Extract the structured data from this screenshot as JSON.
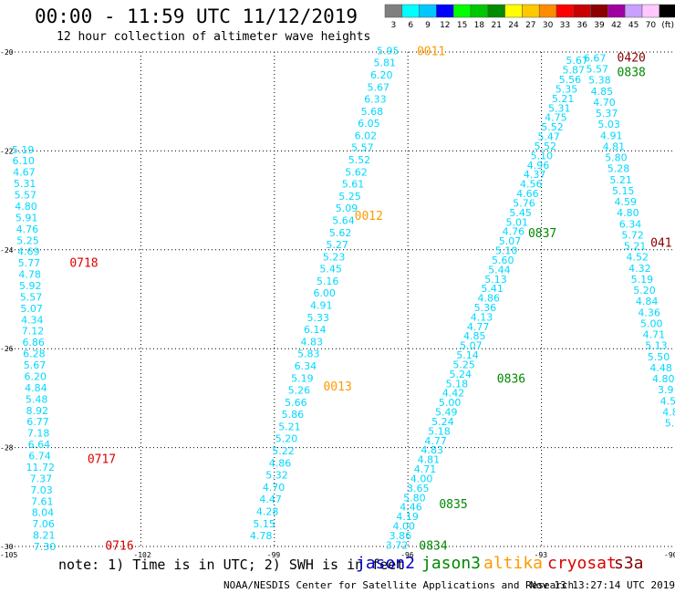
{
  "title": "00:00 - 11:59 UTC 11/12/2019",
  "subtitle": "12 hour collection of altimeter wave heights",
  "note": "note: 1) Time is in UTC; 2) SWH is in feet",
  "footer_left": "NOAA/NESDIS Center for Satellite Applications and Research",
  "footer_right": "Nov 13 13:27:14 UTC 2019",
  "colorbar": {
    "labels": [
      "3",
      "6",
      "9",
      "12",
      "15",
      "18",
      "21",
      "24",
      "27",
      "30",
      "33",
      "36",
      "39",
      "42",
      "45",
      "70",
      "(ft)"
    ],
    "colors": [
      "#7f7f7f",
      "#00ffff",
      "#00c8ff",
      "#0000ff",
      "#00ff00",
      "#00c800",
      "#008c00",
      "#ffff00",
      "#ffc800",
      "#ff8c00",
      "#ff0000",
      "#c80000",
      "#8c0000",
      "#a000a0",
      "#c8a0ff",
      "#ffc8ff",
      "#000000"
    ]
  },
  "satellites": [
    {
      "name": "jason2",
      "color": "#0000cc"
    },
    {
      "name": "jason3",
      "color": "#008800"
    },
    {
      "name": "altika",
      "color": "#ff9900"
    },
    {
      "name": "cryosat",
      "color": "#dd0000"
    },
    {
      "name": "s3a",
      "color": "#880000"
    }
  ],
  "chart_data": {
    "type": "scatter",
    "title": "00:00 - 11:59 UTC 11/12/2019",
    "subtitle": "12 hour collection of altimeter wave heights",
    "xlim": [
      -105,
      -90
    ],
    "ylim": [
      -30,
      -20
    ],
    "x_ticks": [
      "-105",
      "-102",
      "-99",
      "-96",
      "-93",
      "-90"
    ],
    "y_ticks": [
      "-20",
      "-22",
      "-24",
      "-26",
      "-28",
      "-30"
    ],
    "grid": true,
    "tracks": [
      {
        "satellite": "cryosat",
        "color": "#00d8ff",
        "x0": -104.65,
        "y0": -21.97,
        "x1": -104.16,
        "y1": -30,
        "values": [
          "5.19",
          "6.10",
          "4.67",
          "5.31",
          "5.57",
          "4.80",
          "5.91",
          "4.76",
          "5.25",
          "4.69",
          "5.77",
          "4.78",
          "5.92",
          "5.57",
          "5.07",
          "4.34",
          "7.12",
          "6.86",
          "6.28",
          "5.67",
          "6.20",
          "4.84",
          "5.48",
          "8.92",
          "6.77",
          "7.18",
          "6.64",
          "6.74",
          "11.72",
          "7.37",
          "7.03",
          "7.61",
          "8.04",
          "7.06",
          "8.21",
          "7.30"
        ]
      },
      {
        "satellite": "cryosat",
        "times": [
          {
            "label": "0718",
            "x": -103.6,
            "y": -24.25
          },
          {
            "label": "0717",
            "x": -103.2,
            "y": -28.22
          },
          {
            "label": "0716",
            "x": -102.8,
            "y": -29.97
          }
        ],
        "color": "#dd0000"
      },
      {
        "satellite": "altika",
        "color": "#00d8ff",
        "x0": -96.45,
        "y0": -19.97,
        "x1": -99.3,
        "y1": -29.78,
        "values": [
          "5.95",
          "5.81",
          "6.20",
          "5.67",
          "6.33",
          "5.68",
          "6.05",
          "6.02",
          "5.57",
          "5.52",
          "5.62",
          "5.61",
          "5.25",
          "5.09",
          "5.64",
          "5.62",
          "5.27",
          "5.23",
          "5.45",
          "5.16",
          "6.00",
          "4.91",
          "5.33",
          "6.14",
          "4.83",
          "5.83",
          "6.34",
          "5.19",
          "5.26",
          "5.66",
          "5.86",
          "5.21",
          "5.20",
          "5.22",
          "4.86",
          "5.32",
          "4.70",
          "4.47",
          "4.28",
          "5.15",
          "4.78"
        ]
      },
      {
        "satellite": "altika",
        "times": [
          {
            "label": "0011",
            "x": -95.8,
            "y": -19.97
          },
          {
            "label": "0012",
            "x": -97.2,
            "y": -23.3
          },
          {
            "label": "0013",
            "x": -97.9,
            "y": -26.75
          }
        ],
        "color": "#ff9900"
      },
      {
        "satellite": "jason3",
        "color": "#00d8ff",
        "x0": -92.2,
        "y0": -20.17,
        "x1": -96.25,
        "y1": -29.97,
        "values": [
          "5.67",
          "5.87",
          "5.56",
          "5.35",
          "5.21",
          "5.31",
          "4.75",
          "5.52",
          "5.47",
          "5.52",
          "5.10",
          "4.96",
          "4.37",
          "4.56",
          "4.66",
          "5.76",
          "5.45",
          "5.01",
          "4.76",
          "5.07",
          "5.10",
          "5.60",
          "5.44",
          "5.13",
          "5.41",
          "4.86",
          "5.36",
          "4.13",
          "4.77",
          "4.85",
          "5.07",
          "5.14",
          "5.25",
          "5.24",
          "5.18",
          "4.42",
          "5.00",
          "5.49",
          "5.24",
          "5.18",
          "4.77",
          "4.83",
          "4.81",
          "4.71",
          "4.00",
          "3.65",
          "5.80",
          "4.46",
          "4.19",
          "4.00",
          "3.86",
          "3.72"
        ]
      },
      {
        "satellite": "jason3",
        "times": [
          {
            "label": "0838",
            "x": -91.3,
            "y": -20.4
          },
          {
            "label": "0837",
            "x": -93.3,
            "y": -23.65
          },
          {
            "label": "0836",
            "x": -94.0,
            "y": -26.6
          },
          {
            "label": "0835",
            "x": -95.3,
            "y": -29.13
          },
          {
            "label": "0834",
            "x": -95.75,
            "y": -29.97
          }
        ],
        "color": "#008800"
      },
      {
        "satellite": "s3a",
        "color": "#00d8ff",
        "x0": -91.8,
        "y0": -20.12,
        "x1": -90.05,
        "y1": -27.5,
        "values": [
          "6.67",
          "5.57",
          "5.38",
          "4.85",
          "4.70",
          "5.37",
          "5.03",
          "4.91",
          "4.81",
          "5.80",
          "5.28",
          "5.21",
          "5.15",
          "4.59",
          "4.80",
          "6.34",
          "5.72",
          "5.21",
          "4.52",
          "4.32",
          "5.19",
          "5.20",
          "4.84",
          "4.36",
          "5.00",
          "4.71",
          "5.13",
          "5.50",
          "4.48",
          "4.80",
          "3.9",
          "4.5",
          "4.8",
          "5.0"
        ]
      },
      {
        "satellite": "s3a",
        "times": [
          {
            "label": "0420",
            "x": -91.3,
            "y": -20.1
          },
          {
            "label": "041",
            "x": -90.55,
            "y": -23.85
          }
        ],
        "color": "#880000"
      }
    ]
  }
}
